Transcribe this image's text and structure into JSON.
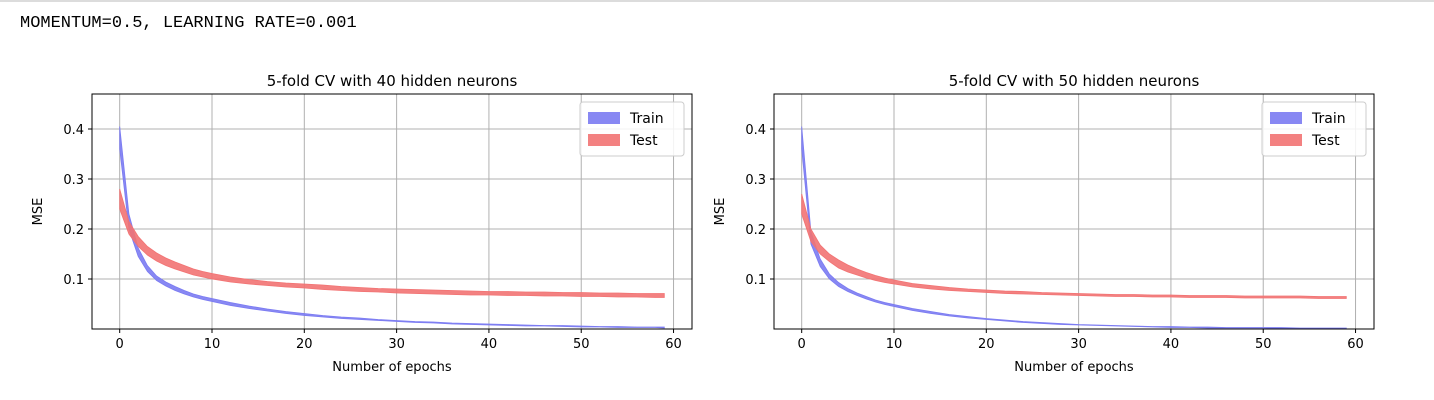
{
  "header": {
    "text": "MOMENTUM=0.5, LEARNING RATE=0.001"
  },
  "colors": {
    "train": "#7b7bf2",
    "test": "#f27373",
    "grid": "#b0b0b0",
    "axes": "#000000"
  },
  "chart_data": [
    {
      "type": "area",
      "title": "5-fold CV with 40 hidden neurons",
      "xlabel": "Number of epochs",
      "ylabel": "MSE",
      "xlim": [
        -3,
        62
      ],
      "ylim": [
        0.0,
        0.47
      ],
      "xticks": [
        0,
        10,
        20,
        30,
        40,
        50,
        60
      ],
      "yticks": [
        0.1,
        0.2,
        0.3,
        0.4
      ],
      "grid": true,
      "legend_position": "top-right",
      "series": [
        {
          "name": "Train",
          "x": [
            0,
            1,
            2,
            3,
            4,
            5,
            6,
            7,
            8,
            9,
            10,
            12,
            14,
            16,
            18,
            20,
            22,
            24,
            26,
            28,
            30,
            32,
            34,
            36,
            38,
            40,
            42,
            44,
            46,
            48,
            50,
            52,
            54,
            56,
            58,
            59
          ],
          "lower": [
            0.36,
            0.2,
            0.145,
            0.115,
            0.097,
            0.086,
            0.077,
            0.07,
            0.064,
            0.059,
            0.055,
            0.047,
            0.041,
            0.036,
            0.031,
            0.027,
            0.024,
            0.021,
            0.019,
            0.017,
            0.015,
            0.013,
            0.012,
            0.01,
            0.009,
            0.008,
            0.007,
            0.006,
            0.006,
            0.005,
            0.004,
            0.004,
            0.003,
            0.003,
            0.003,
            0.002
          ],
          "upper": [
            0.405,
            0.23,
            0.162,
            0.127,
            0.106,
            0.094,
            0.085,
            0.077,
            0.07,
            0.065,
            0.061,
            0.053,
            0.046,
            0.04,
            0.035,
            0.031,
            0.027,
            0.024,
            0.022,
            0.019,
            0.017,
            0.015,
            0.014,
            0.012,
            0.011,
            0.01,
            0.009,
            0.008,
            0.007,
            0.007,
            0.006,
            0.005,
            0.005,
            0.004,
            0.004,
            0.004
          ]
        },
        {
          "name": "Test",
          "x": [
            0,
            1,
            2,
            3,
            4,
            5,
            6,
            7,
            8,
            9,
            10,
            12,
            14,
            16,
            18,
            20,
            22,
            24,
            26,
            28,
            30,
            32,
            34,
            36,
            38,
            40,
            42,
            44,
            46,
            48,
            50,
            52,
            54,
            56,
            58,
            59
          ],
          "lower": [
            0.24,
            0.19,
            0.165,
            0.148,
            0.136,
            0.127,
            0.12,
            0.114,
            0.108,
            0.104,
            0.1,
            0.094,
            0.09,
            0.087,
            0.084,
            0.082,
            0.079,
            0.077,
            0.075,
            0.074,
            0.072,
            0.071,
            0.07,
            0.069,
            0.068,
            0.068,
            0.067,
            0.067,
            0.066,
            0.066,
            0.065,
            0.065,
            0.064,
            0.064,
            0.063,
            0.063
          ],
          "upper": [
            0.28,
            0.215,
            0.185,
            0.165,
            0.152,
            0.142,
            0.134,
            0.127,
            0.12,
            0.115,
            0.111,
            0.104,
            0.099,
            0.095,
            0.092,
            0.09,
            0.088,
            0.085,
            0.083,
            0.081,
            0.08,
            0.079,
            0.078,
            0.077,
            0.076,
            0.075,
            0.075,
            0.074,
            0.074,
            0.073,
            0.073,
            0.072,
            0.072,
            0.071,
            0.071,
            0.071
          ]
        }
      ]
    },
    {
      "type": "area",
      "title": "5-fold CV with 50 hidden neurons",
      "xlabel": "Number of epochs",
      "ylabel": "MSE",
      "xlim": [
        -3,
        62
      ],
      "ylim": [
        0.0,
        0.47
      ],
      "xticks": [
        0,
        10,
        20,
        30,
        40,
        50,
        60
      ],
      "yticks": [
        0.1,
        0.2,
        0.3,
        0.4
      ],
      "grid": true,
      "legend_position": "top-right",
      "series": [
        {
          "name": "Train",
          "x": [
            0,
            1,
            2,
            3,
            4,
            5,
            6,
            7,
            8,
            9,
            10,
            12,
            14,
            16,
            18,
            20,
            22,
            24,
            26,
            28,
            30,
            32,
            34,
            36,
            38,
            40,
            42,
            44,
            46,
            48,
            50,
            52,
            54,
            56,
            58,
            59
          ],
          "lower": [
            0.36,
            0.17,
            0.125,
            0.1,
            0.085,
            0.075,
            0.067,
            0.06,
            0.054,
            0.049,
            0.045,
            0.037,
            0.031,
            0.026,
            0.022,
            0.019,
            0.016,
            0.013,
            0.011,
            0.009,
            0.008,
            0.007,
            0.006,
            0.005,
            0.004,
            0.003,
            0.003,
            0.002,
            0.002,
            0.002,
            0.002,
            0.001,
            0.001,
            0.001,
            0.001,
            0.001
          ],
          "upper": [
            0.405,
            0.195,
            0.14,
            0.11,
            0.093,
            0.081,
            0.072,
            0.065,
            0.058,
            0.053,
            0.049,
            0.041,
            0.035,
            0.029,
            0.025,
            0.021,
            0.018,
            0.015,
            0.013,
            0.011,
            0.009,
            0.008,
            0.007,
            0.006,
            0.005,
            0.005,
            0.004,
            0.004,
            0.003,
            0.003,
            0.003,
            0.003,
            0.002,
            0.002,
            0.002,
            0.002
          ]
        },
        {
          "name": "Test",
          "x": [
            0,
            1,
            2,
            3,
            4,
            5,
            6,
            7,
            8,
            9,
            10,
            12,
            14,
            16,
            18,
            20,
            22,
            24,
            26,
            28,
            30,
            32,
            34,
            36,
            38,
            40,
            42,
            44,
            46,
            48,
            50,
            52,
            54,
            56,
            58,
            59
          ],
          "lower": [
            0.23,
            0.175,
            0.15,
            0.135,
            0.122,
            0.114,
            0.108,
            0.102,
            0.097,
            0.093,
            0.09,
            0.084,
            0.08,
            0.077,
            0.075,
            0.073,
            0.071,
            0.07,
            0.069,
            0.068,
            0.067,
            0.066,
            0.065,
            0.065,
            0.064,
            0.064,
            0.063,
            0.063,
            0.063,
            0.062,
            0.062,
            0.062,
            0.062,
            0.061,
            0.061,
            0.061
          ],
          "upper": [
            0.27,
            0.2,
            0.168,
            0.15,
            0.138,
            0.128,
            0.12,
            0.113,
            0.107,
            0.102,
            0.098,
            0.091,
            0.087,
            0.083,
            0.08,
            0.078,
            0.076,
            0.075,
            0.073,
            0.072,
            0.071,
            0.07,
            0.069,
            0.069,
            0.068,
            0.068,
            0.067,
            0.067,
            0.067,
            0.066,
            0.066,
            0.066,
            0.066,
            0.065,
            0.065,
            0.065
          ]
        }
      ]
    }
  ]
}
